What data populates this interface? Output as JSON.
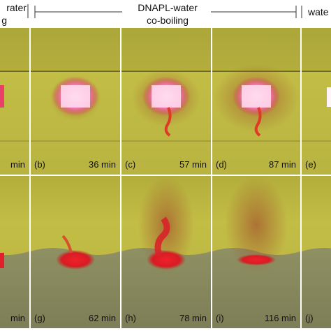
{
  "header": {
    "left": [
      "rater",
      "g"
    ],
    "center": [
      "DNAPL-water",
      "co-boiling"
    ],
    "right": "wate"
  },
  "rows": [
    [
      {
        "time": "min"
      },
      {
        "letter": "(b)",
        "time": "36 min"
      },
      {
        "letter": "(c)",
        "time": "57 min"
      },
      {
        "letter": "(d)",
        "time": "87 min"
      },
      {
        "letter": "(e)"
      }
    ],
    [
      {
        "time": "min"
      },
      {
        "letter": "(g)",
        "time": "62 min"
      },
      {
        "letter": "(h)",
        "time": "78 min"
      },
      {
        "letter": "(i)",
        "time": "116 min"
      },
      {
        "letter": "(j)"
      }
    ]
  ]
}
